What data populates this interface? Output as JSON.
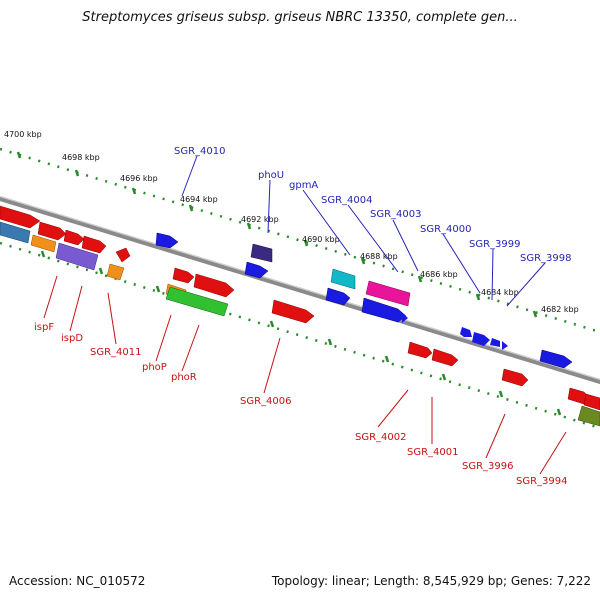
{
  "title": "Streptomyces griseus subsp. griseus NBRC 13350, complete gen...",
  "footer": {
    "accession": "Accession: NC_010572",
    "topology": "Topology: linear; Length: 8,545,929 bp; Genes: 7,222"
  },
  "scale": {
    "ticks": [
      "4700 kbp",
      "4698 kbp",
      "4696 kbp",
      "4694 kbp",
      "4692 kbp",
      "4690 kbp",
      "4688 kbp",
      "4686 kbp",
      "4684 kbp",
      "4682 kbp"
    ]
  },
  "gene_labels": {
    "top": [
      "SGR_4010",
      "phoU",
      "gpmA",
      "SGR_4004",
      "SGR_4003",
      "SGR_4000",
      "SGR_3999",
      "SGR_3998"
    ],
    "bottom": [
      "ispF",
      "ispD",
      "SGR_4011",
      "phoP",
      "phoR",
      "SGR_4006",
      "SGR_4002",
      "SGR_4001",
      "SGR_3996",
      "SGR_3994"
    ]
  },
  "colors": {
    "label_top": "#2424b8",
    "label_bottom": "#c41212",
    "dots": "#2a8a2a",
    "backbone": "#8a8a8a"
  }
}
